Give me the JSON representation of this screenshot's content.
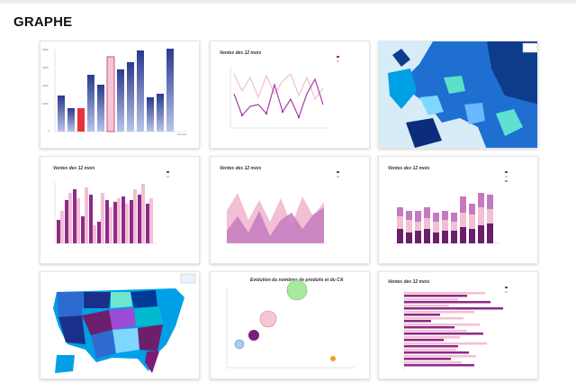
{
  "page": {
    "title": "GRAPHE"
  },
  "thumbs": {
    "line_title": "Ventes des 12 mois",
    "bars_title": "Ventes des 12 mois",
    "area_title": "Ventes des 12 mois",
    "stack_title": "Ventes des 12 mois",
    "bubble_title": "Evolution du nombres de produits et du CA",
    "hbar_title": "Ventes des 12 mois"
  },
  "colors": {
    "accent": "#b02a9c",
    "pink": "#f2bfd3",
    "blue": "#3a4fa8",
    "map": "#00a0e6"
  }
}
